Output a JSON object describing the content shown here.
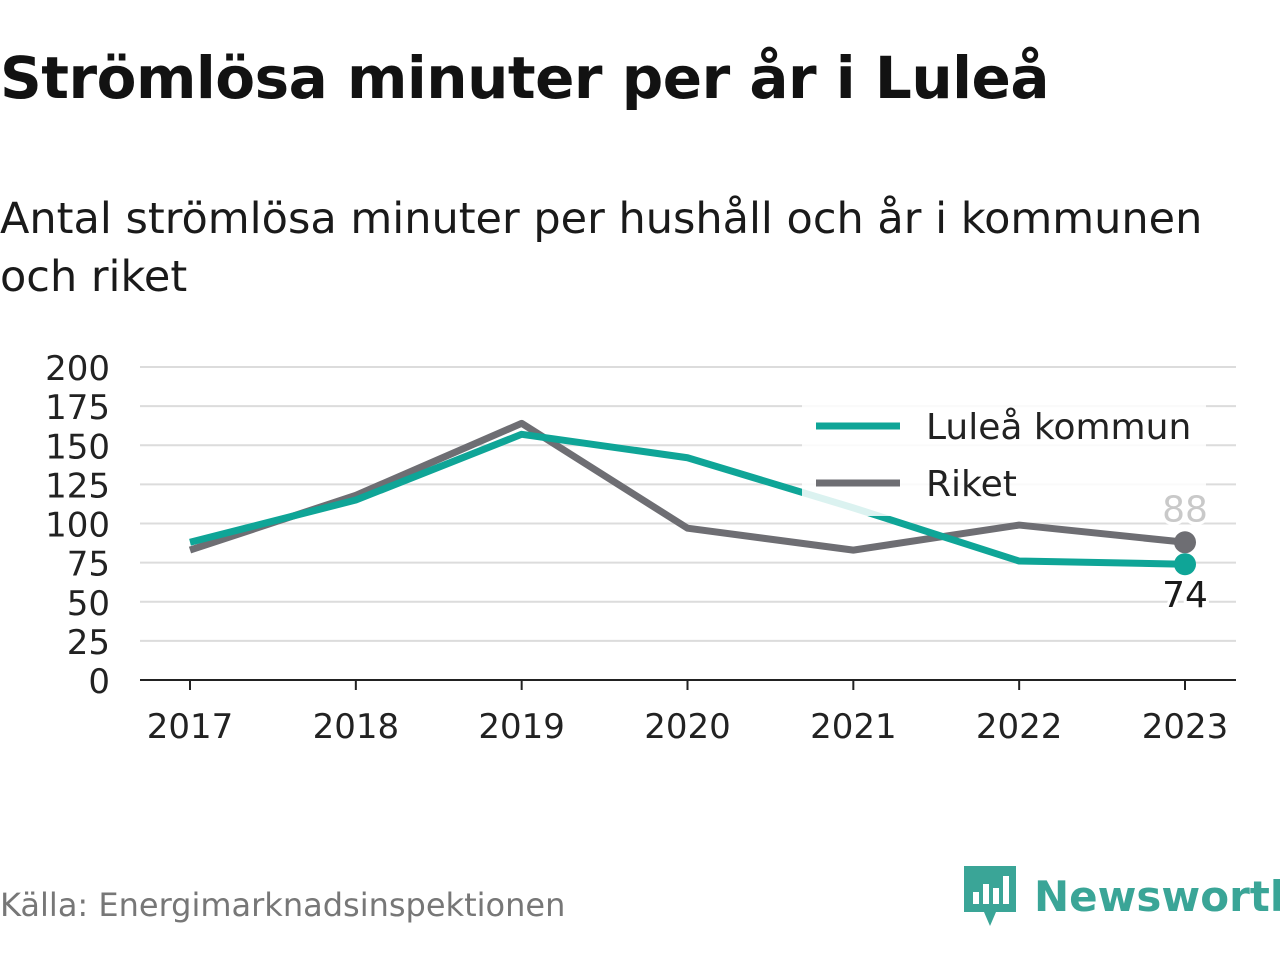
{
  "title": "Strömlösa minuter per år i Luleå",
  "subtitle": "Antal strömlösa minuter per hushåll och år i kommunen och riket",
  "source": "Källa: Energimarknadsinspektionen",
  "brand": {
    "name": "Newsworthy",
    "icon": "newsworthy-logo-icon",
    "color": "#3aa597"
  },
  "chart_data": {
    "type": "line",
    "x": [
      "2017",
      "2018",
      "2019",
      "2020",
      "2021",
      "2022",
      "2023"
    ],
    "ylim": [
      0,
      200
    ],
    "yticks": [
      0,
      25,
      50,
      75,
      100,
      125,
      150,
      175,
      200
    ],
    "grid": true,
    "legend": "top-right",
    "series": [
      {
        "name": "Luleå kommun",
        "color": "#0fa597",
        "values": [
          88,
          115,
          157,
          142,
          110,
          76,
          74
        ]
      },
      {
        "name": "Riket",
        "color": "#6e6e73",
        "values": [
          83,
          118,
          164,
          97,
          83,
          99,
          88
        ]
      }
    ],
    "end_labels": [
      {
        "series": "Riket",
        "text": "88"
      },
      {
        "series": "Luleå kommun",
        "text": "74"
      }
    ]
  }
}
